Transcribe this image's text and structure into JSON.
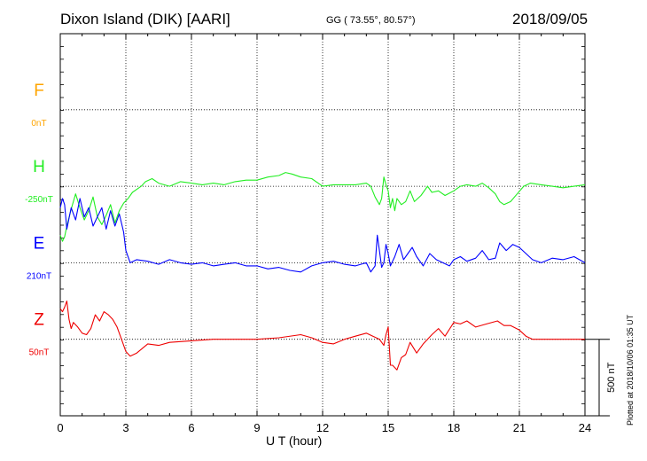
{
  "header": {
    "station": "Dixon Island (DIK)  [AARI]",
    "coords": "GG ( 73.55°,  80.57°)",
    "date": "2018/09/05"
  },
  "scale_label": "500 nT",
  "plotted_note": "Plotted at 2018/10/06 01:35 UT",
  "chart_data": {
    "type": "line",
    "title": "Dixon Island (DIK)  [AARI]",
    "xlabel": "U T (hour)",
    "xlim": [
      0,
      24
    ],
    "x_ticks": [
      0,
      3,
      6,
      9,
      12,
      15,
      18,
      21,
      24
    ],
    "grid": true,
    "scale_bar_nT": 500,
    "series": [
      {
        "name": "F",
        "baseline": "0nT",
        "color": "#ffa500",
        "level": 4,
        "x": [],
        "y": []
      },
      {
        "name": "H",
        "baseline": "-250nT",
        "color": "#22ee22",
        "level": 3,
        "x": [
          0,
          0.1,
          0.2,
          0.3,
          0.5,
          0.7,
          0.9,
          1.1,
          1.3,
          1.5,
          1.7,
          1.9,
          2.1,
          2.3,
          2.5,
          2.7,
          2.9,
          3.1,
          3.3,
          3.5,
          3.7,
          3.9,
          4.2,
          4.5,
          5,
          5.5,
          6,
          6.5,
          7,
          7.5,
          8,
          8.5,
          9,
          9.5,
          10,
          10.3,
          10.6,
          11,
          11.5,
          12,
          12.5,
          13,
          13.5,
          14,
          14.2,
          14.4,
          14.6,
          14.7,
          14.8,
          14.9,
          15.0,
          15.1,
          15.2,
          15.3,
          15.4,
          15.6,
          15.8,
          16,
          16.2,
          16.5,
          16.8,
          17,
          17.3,
          17.6,
          18,
          18.3,
          18.6,
          19,
          19.3,
          19.6,
          19.9,
          20.1,
          20.3,
          20.6,
          20.9,
          21.2,
          21.5,
          22,
          22.5,
          23,
          23.5,
          24
        ],
        "y": [
          -320,
          -360,
          -330,
          -260,
          -150,
          -50,
          -140,
          -220,
          -160,
          -70,
          -200,
          -250,
          -190,
          -120,
          -240,
          -160,
          -110,
          -80,
          -40,
          -20,
          0,
          30,
          50,
          20,
          0,
          30,
          20,
          10,
          20,
          10,
          30,
          40,
          40,
          60,
          70,
          90,
          80,
          60,
          50,
          0,
          10,
          10,
          10,
          20,
          0,
          -70,
          -120,
          -80,
          60,
          10,
          -30,
          -140,
          -80,
          -160,
          -80,
          -120,
          -100,
          -30,
          -100,
          -60,
          0,
          -40,
          -30,
          -60,
          -30,
          0,
          10,
          0,
          20,
          -10,
          -50,
          -100,
          -120,
          -100,
          -50,
          0,
          20,
          10,
          0,
          -10,
          0,
          10
        ]
      },
      {
        "name": "E",
        "baseline": "210nT",
        "color": "#0000ff",
        "level": 2,
        "x": [
          0,
          0.1,
          0.2,
          0.3,
          0.5,
          0.7,
          0.9,
          1.1,
          1.3,
          1.5,
          1.7,
          1.9,
          2.1,
          2.3,
          2.5,
          2.7,
          2.9,
          3.0,
          3.2,
          3.5,
          4,
          4.5,
          5,
          5.5,
          6,
          6.5,
          7,
          7.5,
          8,
          8.5,
          9,
          9.5,
          10,
          10.5,
          11,
          11.5,
          12,
          12.5,
          13,
          13.5,
          14,
          14.2,
          14.4,
          14.5,
          14.6,
          14.7,
          14.8,
          14.9,
          15.0,
          15.1,
          15.3,
          15.5,
          15.7,
          15.9,
          16.1,
          16.3,
          16.6,
          16.9,
          17.2,
          17.5,
          17.8,
          18,
          18.3,
          18.6,
          19,
          19.3,
          19.6,
          19.9,
          20.1,
          20.4,
          20.7,
          21,
          21.3,
          21.6,
          22,
          22.5,
          23,
          23.5,
          24
        ],
        "y": [
          360,
          420,
          380,
          220,
          360,
          280,
          420,
          300,
          360,
          240,
          300,
          360,
          220,
          340,
          240,
          320,
          200,
          80,
          0,
          20,
          10,
          -10,
          20,
          0,
          -10,
          0,
          -20,
          -10,
          0,
          -20,
          -20,
          -40,
          -30,
          -50,
          -60,
          -20,
          0,
          10,
          -10,
          -20,
          0,
          -60,
          -20,
          180,
          80,
          -30,
          0,
          120,
          60,
          -20,
          40,
          120,
          20,
          60,
          100,
          40,
          -20,
          60,
          20,
          0,
          -20,
          20,
          40,
          10,
          30,
          80,
          20,
          30,
          130,
          80,
          120,
          100,
          60,
          20,
          0,
          30,
          20,
          40,
          0
        ]
      },
      {
        "name": "Z",
        "baseline": "50nT",
        "color": "#ee0000",
        "level": 1,
        "x": [
          0,
          0.1,
          0.2,
          0.3,
          0.4,
          0.5,
          0.6,
          0.8,
          1.0,
          1.2,
          1.4,
          1.6,
          1.8,
          2.0,
          2.2,
          2.4,
          2.6,
          2.8,
          3.0,
          3.2,
          3.5,
          4,
          4.5,
          5,
          6,
          7,
          8,
          9,
          10,
          11,
          11.5,
          12,
          12.5,
          13,
          13.5,
          14,
          14.3,
          14.6,
          14.8,
          14.9,
          15.0,
          15.1,
          15.2,
          15.4,
          15.6,
          15.8,
          16,
          16.3,
          16.6,
          17,
          17.3,
          17.6,
          18,
          18.3,
          18.6,
          19,
          19.5,
          20,
          20.3,
          20.6,
          21,
          21.3,
          21.6,
          22,
          22.5,
          23,
          23.5,
          24
        ],
        "y": [
          200,
          180,
          210,
          250,
          130,
          70,
          110,
          80,
          40,
          30,
          70,
          160,
          120,
          180,
          160,
          130,
          80,
          0,
          -80,
          -110,
          -90,
          -30,
          -40,
          -20,
          -10,
          0,
          0,
          0,
          10,
          30,
          10,
          -20,
          -30,
          0,
          20,
          40,
          20,
          0,
          -40,
          30,
          80,
          -170,
          -170,
          -200,
          -120,
          -100,
          -20,
          -90,
          -30,
          30,
          70,
          20,
          110,
          100,
          120,
          80,
          100,
          120,
          90,
          90,
          60,
          20,
          0,
          0,
          0,
          0,
          0,
          0
        ]
      }
    ]
  }
}
